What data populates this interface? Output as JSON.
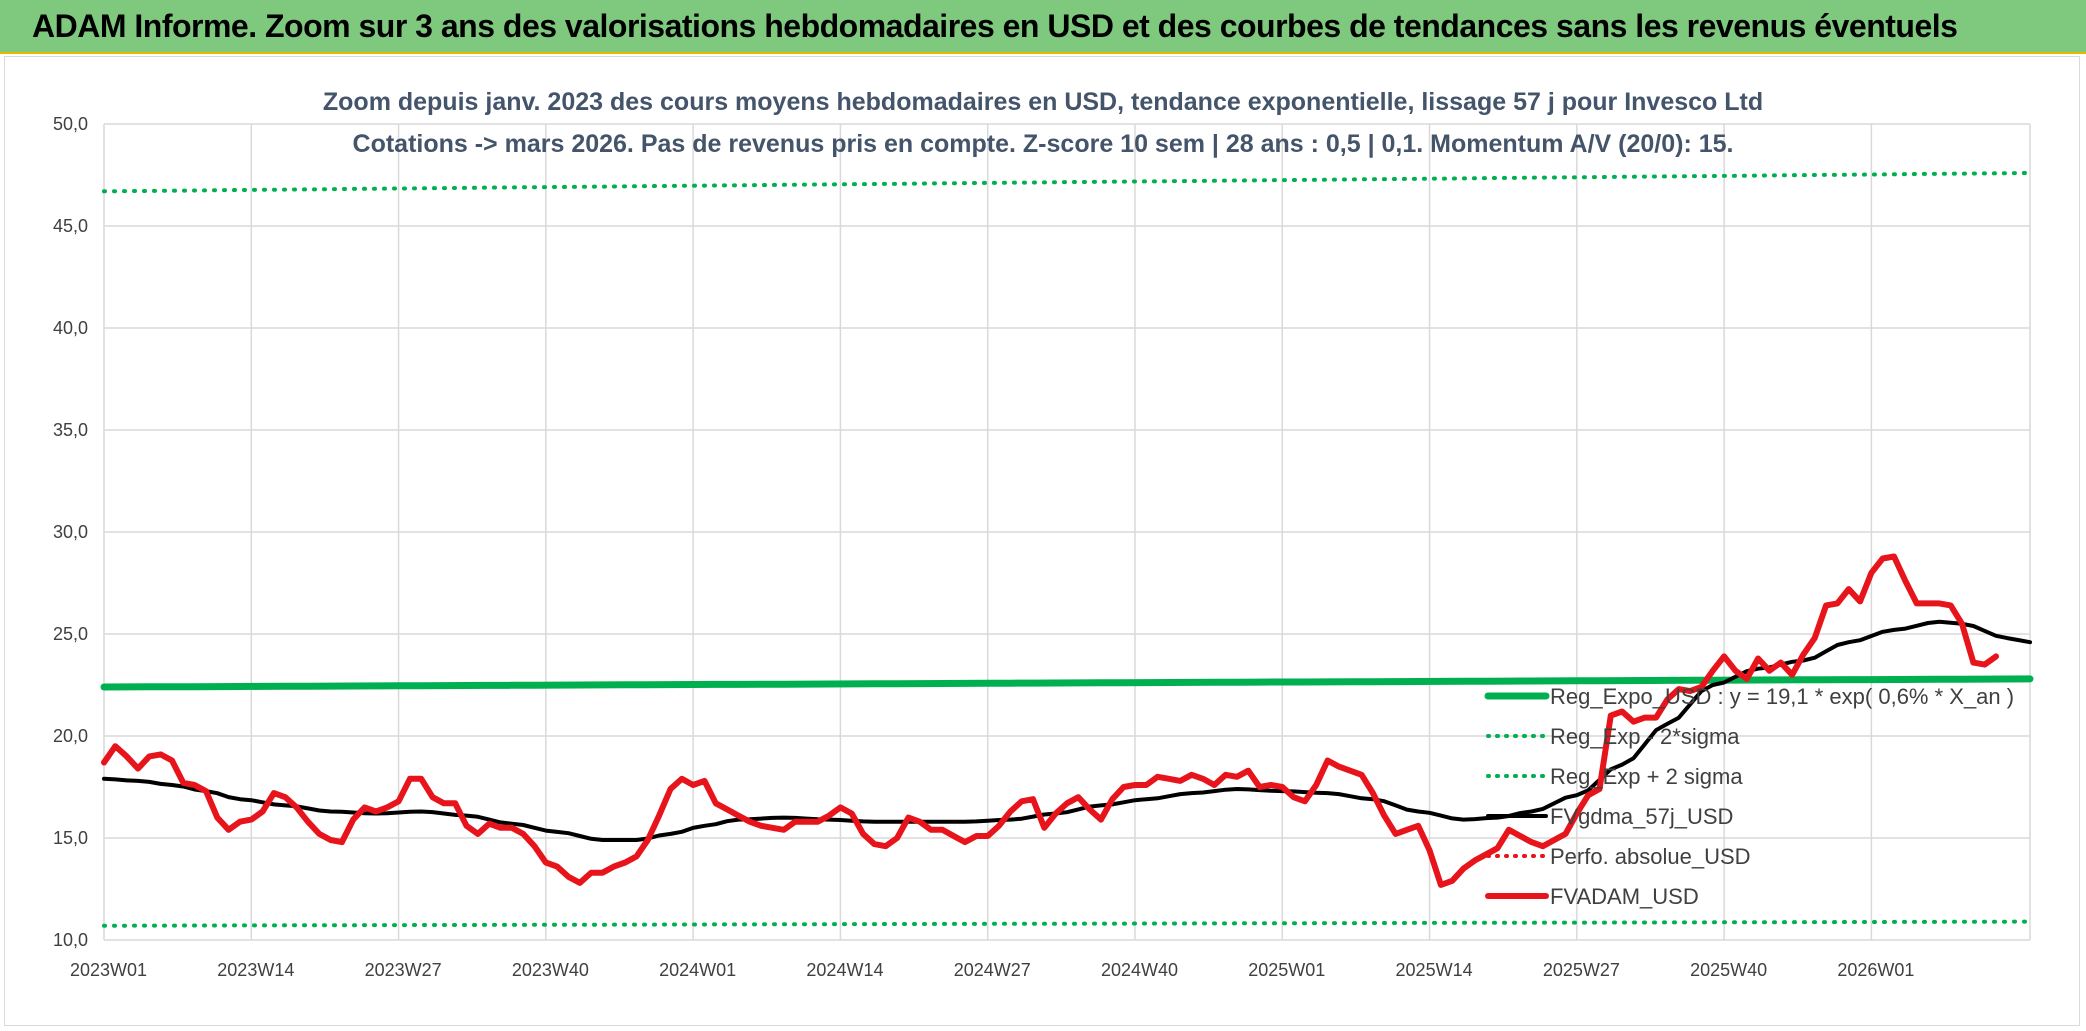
{
  "banner": {
    "title": "ADAM Informe. Zoom sur 3 ans des valorisations hebdomadaires en USD et des courbes de tendances sans les revenus éventuels"
  },
  "chart_data": {
    "type": "line",
    "title_line1": "Zoom depuis janv. 2023 des cours moyens hebdomadaires en USD, tendance exponentielle, lissage 57 j pour Invesco Ltd",
    "title_line2": "Cotations -> mars 2026. Pas de revenus pris en compte. Z-score 10 sem | 28 ans : 0,5 | 0,1. Momentum A/V (20/0): 15.",
    "ylim": [
      10,
      50
    ],
    "y_ticks": [
      "10,0",
      "15,0",
      "20,0",
      "25,0",
      "30,0",
      "35,0",
      "40,0",
      "45,0",
      "50,0"
    ],
    "x_weeks": 170,
    "x_ticks": [
      {
        "label": "2023W01",
        "week": 0
      },
      {
        "label": "2023W14",
        "week": 13
      },
      {
        "label": "2023W27",
        "week": 26
      },
      {
        "label": "2023W40",
        "week": 39
      },
      {
        "label": "2024W01",
        "week": 52
      },
      {
        "label": "2024W14",
        "week": 65
      },
      {
        "label": "2024W27",
        "week": 78
      },
      {
        "label": "2024W40",
        "week": 91
      },
      {
        "label": "2025W01",
        "week": 104
      },
      {
        "label": "2025W14",
        "week": 117
      },
      {
        "label": "2025W27",
        "week": 130
      },
      {
        "label": "2025W40",
        "week": 143
      },
      {
        "label": "2026W01",
        "week": 156
      }
    ],
    "colors": {
      "green": "#00b050",
      "black": "#000000",
      "red": "#e8141b",
      "grid": "#d9d9d9"
    },
    "series": [
      {
        "name": "Reg_Expo_USD : y = 19,1 * exp( 0,6% *  X_an )",
        "style": "solid",
        "color": "#00b050",
        "width": 7,
        "linear": true,
        "start": 22.4,
        "end": 22.8
      },
      {
        "name": "Reg_Exp - 2*sigma",
        "style": "dotted",
        "color": "#00b050",
        "width": 4,
        "linear": true,
        "start": 10.7,
        "end": 10.9
      },
      {
        "name": "Reg_Exp + 2 sigma",
        "style": "dotted",
        "color": "#00b050",
        "width": 4,
        "linear": true,
        "start": 46.7,
        "end": 47.6
      },
      {
        "name": "FVgdma_57j_USD",
        "style": "solid",
        "color": "#000000",
        "width": 4,
        "anchors": [
          [
            0,
            17.9
          ],
          [
            3,
            17.8
          ],
          [
            6,
            17.6
          ],
          [
            9,
            17.3
          ],
          [
            12,
            16.9
          ],
          [
            16,
            16.6
          ],
          [
            20,
            16.3
          ],
          [
            24,
            16.2
          ],
          [
            28,
            16.3
          ],
          [
            32,
            16.1
          ],
          [
            36,
            15.7
          ],
          [
            40,
            15.3
          ],
          [
            44,
            14.9
          ],
          [
            47,
            14.9
          ],
          [
            50,
            15.2
          ],
          [
            53,
            15.6
          ],
          [
            56,
            15.9
          ],
          [
            60,
            16.0
          ],
          [
            64,
            15.9
          ],
          [
            68,
            15.8
          ],
          [
            72,
            15.8
          ],
          [
            76,
            15.8
          ],
          [
            80,
            15.9
          ],
          [
            84,
            16.2
          ],
          [
            88,
            16.6
          ],
          [
            92,
            16.9
          ],
          [
            96,
            17.2
          ],
          [
            100,
            17.4
          ],
          [
            104,
            17.3
          ],
          [
            108,
            17.2
          ],
          [
            112,
            16.9
          ],
          [
            116,
            16.3
          ],
          [
            120,
            15.9
          ],
          [
            123,
            16.0
          ],
          [
            126,
            16.3
          ],
          [
            130,
            17.1
          ],
          [
            134,
            18.6
          ],
          [
            138,
            20.6
          ],
          [
            142,
            22.5
          ],
          [
            146,
            23.3
          ],
          [
            150,
            23.7
          ],
          [
            154,
            24.6
          ],
          [
            158,
            25.2
          ],
          [
            162,
            25.6
          ],
          [
            164,
            25.5
          ],
          [
            168,
            24.8
          ],
          [
            170,
            24.6
          ]
        ]
      },
      {
        "name": "Perfo. absolue_USD",
        "style": "dotted",
        "color": "#e8141b",
        "width": 3,
        "hidden": true
      },
      {
        "name": "FVADAM_USD",
        "style": "solid",
        "color": "#e8141b",
        "width": 6,
        "anchors": [
          [
            0,
            18.7
          ],
          [
            1,
            19.5
          ],
          [
            2,
            19.0
          ],
          [
            3,
            18.4
          ],
          [
            4,
            19.0
          ],
          [
            5,
            19.1
          ],
          [
            6,
            18.8
          ],
          [
            7,
            17.7
          ],
          [
            8,
            17.6
          ],
          [
            9,
            17.3
          ],
          [
            10,
            16.0
          ],
          [
            11,
            15.4
          ],
          [
            12,
            15.8
          ],
          [
            13,
            15.9
          ],
          [
            14,
            16.3
          ],
          [
            15,
            17.2
          ],
          [
            16,
            17.0
          ],
          [
            17,
            16.5
          ],
          [
            18,
            15.8
          ],
          [
            19,
            15.2
          ],
          [
            20,
            14.9
          ],
          [
            21,
            14.8
          ],
          [
            22,
            15.9
          ],
          [
            23,
            16.5
          ],
          [
            24,
            16.3
          ],
          [
            25,
            16.5
          ],
          [
            26,
            16.8
          ],
          [
            27,
            17.9
          ],
          [
            28,
            17.9
          ],
          [
            29,
            17.0
          ],
          [
            30,
            16.7
          ],
          [
            31,
            16.7
          ],
          [
            32,
            15.6
          ],
          [
            33,
            15.2
          ],
          [
            34,
            15.7
          ],
          [
            35,
            15.5
          ],
          [
            36,
            15.5
          ],
          [
            37,
            15.2
          ],
          [
            38,
            14.6
          ],
          [
            39,
            13.8
          ],
          [
            40,
            13.6
          ],
          [
            41,
            13.1
          ],
          [
            42,
            12.8
          ],
          [
            43,
            13.3
          ],
          [
            44,
            13.3
          ],
          [
            45,
            13.6
          ],
          [
            46,
            13.8
          ],
          [
            47,
            14.1
          ],
          [
            48,
            14.9
          ],
          [
            49,
            16.1
          ],
          [
            50,
            17.4
          ],
          [
            51,
            17.9
          ],
          [
            52,
            17.6
          ],
          [
            53,
            17.8
          ],
          [
            54,
            16.7
          ],
          [
            55,
            16.4
          ],
          [
            56,
            16.1
          ],
          [
            57,
            15.8
          ],
          [
            58,
            15.6
          ],
          [
            59,
            15.5
          ],
          [
            60,
            15.4
          ],
          [
            61,
            15.8
          ],
          [
            62,
            15.8
          ],
          [
            63,
            15.8
          ],
          [
            64,
            16.1
          ],
          [
            65,
            16.5
          ],
          [
            66,
            16.2
          ],
          [
            67,
            15.2
          ],
          [
            68,
            14.7
          ],
          [
            69,
            14.6
          ],
          [
            70,
            15.0
          ],
          [
            71,
            16.0
          ],
          [
            72,
            15.8
          ],
          [
            73,
            15.4
          ],
          [
            74,
            15.4
          ],
          [
            75,
            15.1
          ],
          [
            76,
            14.8
          ],
          [
            77,
            15.1
          ],
          [
            78,
            15.1
          ],
          [
            79,
            15.6
          ],
          [
            80,
            16.3
          ],
          [
            81,
            16.8
          ],
          [
            82,
            16.9
          ],
          [
            83,
            15.5
          ],
          [
            84,
            16.2
          ],
          [
            85,
            16.7
          ],
          [
            86,
            17.0
          ],
          [
            87,
            16.4
          ],
          [
            88,
            15.9
          ],
          [
            89,
            16.9
          ],
          [
            90,
            17.5
          ],
          [
            91,
            17.6
          ],
          [
            92,
            17.6
          ],
          [
            93,
            18.0
          ],
          [
            94,
            17.9
          ],
          [
            95,
            17.8
          ],
          [
            96,
            18.1
          ],
          [
            97,
            17.9
          ],
          [
            98,
            17.6
          ],
          [
            99,
            18.1
          ],
          [
            100,
            18.0
          ],
          [
            101,
            18.3
          ],
          [
            102,
            17.5
          ],
          [
            103,
            17.6
          ],
          [
            104,
            17.5
          ],
          [
            105,
            17.0
          ],
          [
            106,
            16.8
          ],
          [
            107,
            17.6
          ],
          [
            108,
            18.8
          ],
          [
            109,
            18.5
          ],
          [
            110,
            18.3
          ],
          [
            111,
            18.1
          ],
          [
            112,
            17.2
          ],
          [
            113,
            16.1
          ],
          [
            114,
            15.2
          ],
          [
            115,
            15.4
          ],
          [
            116,
            15.6
          ],
          [
            117,
            14.4
          ],
          [
            118,
            12.7
          ],
          [
            119,
            12.9
          ],
          [
            120,
            13.5
          ],
          [
            121,
            13.9
          ],
          [
            122,
            14.2
          ],
          [
            123,
            14.5
          ],
          [
            124,
            15.4
          ],
          [
            125,
            15.1
          ],
          [
            126,
            14.8
          ],
          [
            127,
            14.6
          ],
          [
            128,
            14.9
          ],
          [
            129,
            15.2
          ],
          [
            130,
            16.2
          ],
          [
            131,
            17.1
          ],
          [
            132,
            17.4
          ],
          [
            133,
            21.0
          ],
          [
            134,
            21.2
          ],
          [
            135,
            20.7
          ],
          [
            136,
            20.9
          ],
          [
            137,
            20.9
          ],
          [
            138,
            21.8
          ],
          [
            139,
            22.3
          ],
          [
            140,
            22.2
          ],
          [
            141,
            22.4
          ],
          [
            142,
            23.2
          ],
          [
            143,
            23.9
          ],
          [
            144,
            23.2
          ],
          [
            145,
            22.8
          ],
          [
            146,
            23.8
          ],
          [
            147,
            23.2
          ],
          [
            148,
            23.6
          ],
          [
            149,
            23.0
          ],
          [
            150,
            24.0
          ],
          [
            151,
            24.8
          ],
          [
            152,
            26.4
          ],
          [
            153,
            26.5
          ],
          [
            154,
            27.2
          ],
          [
            155,
            26.6
          ],
          [
            156,
            28.0
          ],
          [
            157,
            28.7
          ],
          [
            158,
            28.8
          ],
          [
            159,
            27.6
          ],
          [
            160,
            26.5
          ],
          [
            161,
            26.5
          ],
          [
            162,
            26.5
          ],
          [
            163,
            26.4
          ],
          [
            164,
            25.5
          ],
          [
            165,
            23.6
          ],
          [
            166,
            23.5
          ],
          [
            167,
            23.9
          ]
        ]
      }
    ],
    "legend_position": "bottom-right"
  }
}
